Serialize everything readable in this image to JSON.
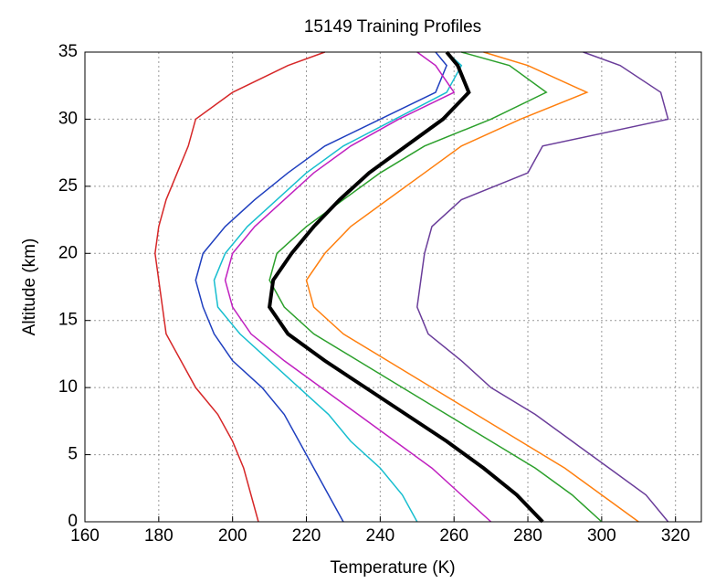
{
  "chart_data": {
    "type": "line",
    "title": "15149 Training Profiles",
    "x_label": "Temperature (K)",
    "y_label": "Altitude (km)",
    "xlim": [
      160,
      327
    ],
    "ylim": [
      0,
      35
    ],
    "xticks": [
      160,
      180,
      200,
      220,
      240,
      260,
      280,
      300,
      320
    ],
    "yticks": [
      0,
      5,
      10,
      15,
      20,
      25,
      30,
      35
    ],
    "grid": true,
    "y": [
      0,
      2,
      4,
      6,
      8,
      10,
      12,
      14,
      16,
      18,
      20,
      22,
      24,
      26,
      28,
      30,
      32,
      34,
      35
    ],
    "series": [
      {
        "color": "#d62728",
        "x": [
          207,
          205,
          203,
          200,
          196,
          190,
          186,
          182,
          181,
          180,
          179,
          180,
          182,
          185,
          188,
          190,
          200,
          215,
          225
        ]
      },
      {
        "color": "#1f3fbf",
        "x": [
          230,
          226,
          222,
          218,
          214,
          208,
          200,
          195,
          192,
          190,
          192,
          198,
          206,
          215,
          225,
          240,
          255,
          258,
          255
        ]
      },
      {
        "color": "#17becf",
        "x": [
          250,
          246,
          240,
          232,
          226,
          218,
          210,
          202,
          196,
          195,
          198,
          204,
          212,
          220,
          230,
          244,
          258,
          262,
          258
        ]
      },
      {
        "color": "#c020c0",
        "x": [
          270,
          262,
          254,
          244,
          234,
          224,
          214,
          205,
          200,
          198,
          200,
          206,
          214,
          222,
          232,
          245,
          260,
          255,
          250
        ]
      },
      {
        "color": "#2ca02c",
        "x": [
          300,
          292,
          282,
          270,
          258,
          246,
          234,
          222,
          214,
          210,
          212,
          220,
          230,
          240,
          252,
          270,
          285,
          275,
          262
        ]
      },
      {
        "color": "#ff7f0e",
        "x": [
          310,
          300,
          290,
          278,
          266,
          254,
          242,
          230,
          222,
          220,
          225,
          232,
          242,
          252,
          262,
          278,
          296,
          280,
          268
        ]
      },
      {
        "color": "#6a3d9a",
        "x": [
          318,
          312,
          302,
          292,
          282,
          270,
          262,
          253,
          250,
          251,
          252,
          254,
          262,
          280,
          284,
          318,
          316,
          305,
          295
        ]
      },
      {
        "color": "#000000",
        "x": [
          284,
          277,
          268,
          258,
          247,
          236,
          225,
          215,
          210,
          211,
          216,
          222,
          229,
          237,
          247,
          257,
          264,
          261,
          258
        ]
      }
    ]
  }
}
